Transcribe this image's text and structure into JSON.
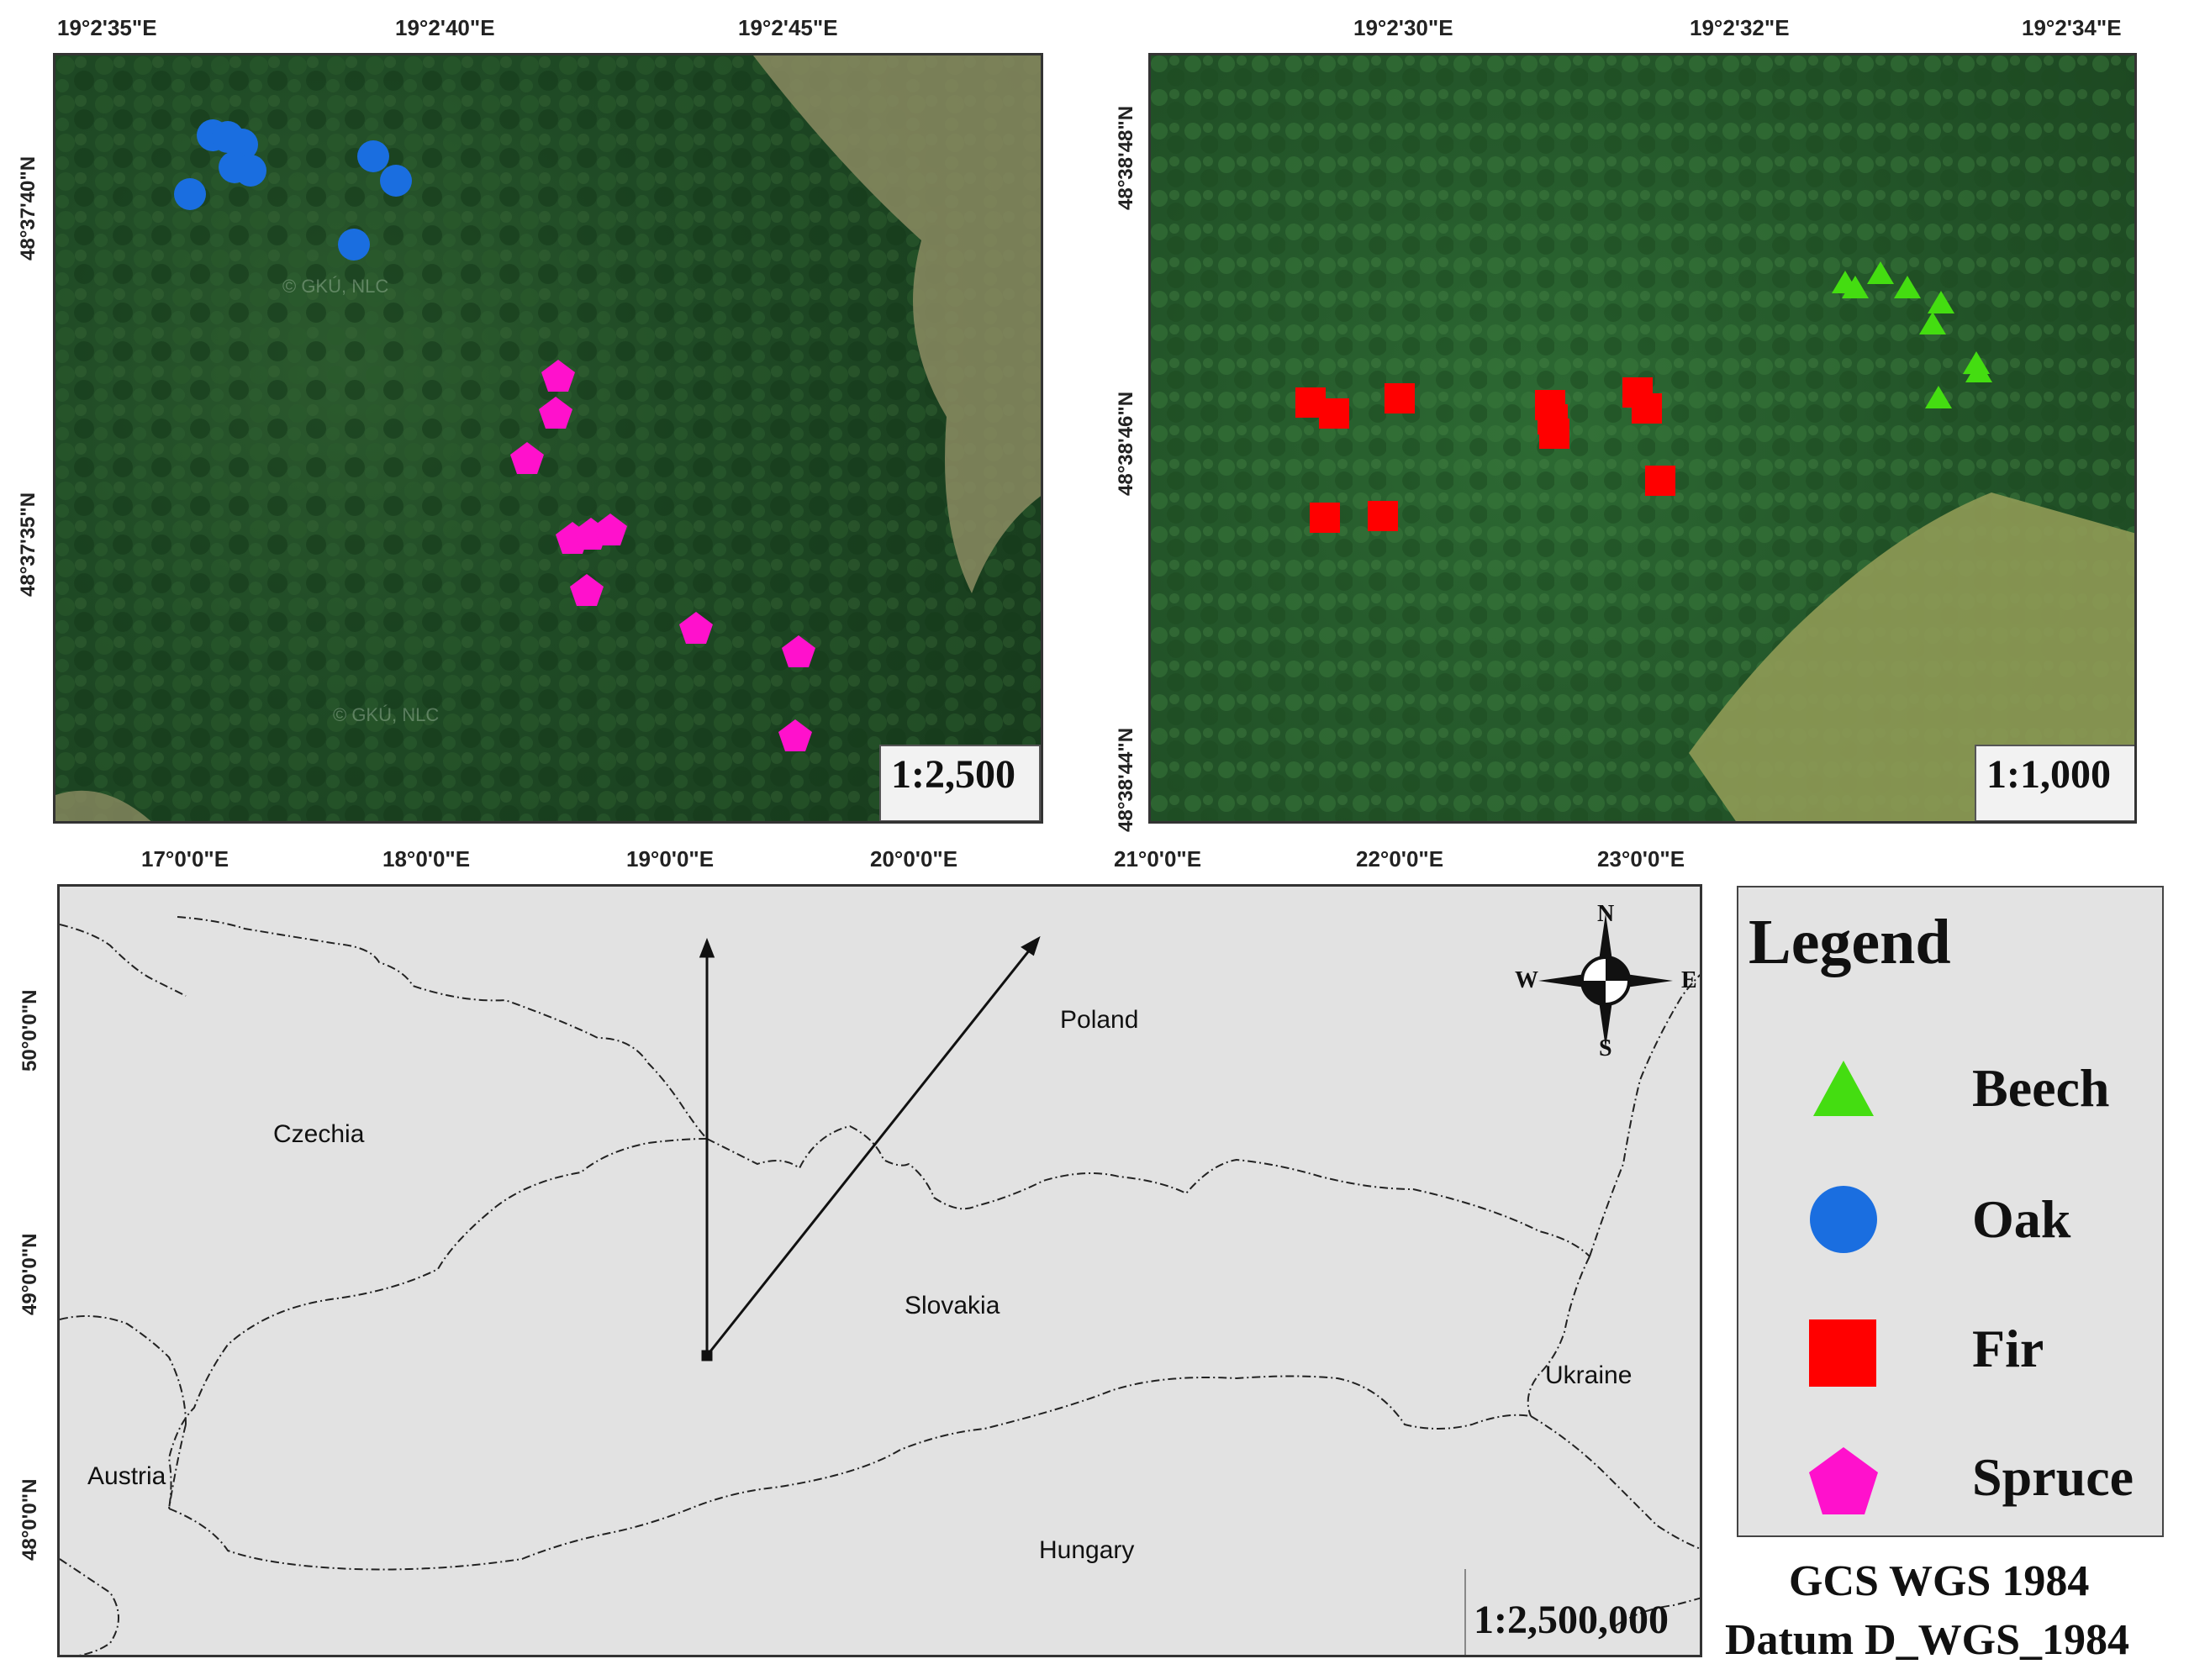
{
  "map1": {
    "x_ticks": [
      "19°2'35\"E",
      "19°2'40\"E",
      "19°2'45\"E"
    ],
    "y_ticks": [
      "48°37'40\"N",
      "48°37'35\"N"
    ],
    "scale": "1:2,500",
    "watermark": "© GKÚ, NLC",
    "oak_points": 9,
    "spruce_points": 11
  },
  "map2": {
    "x_ticks": [
      "19°2'30\"E",
      "19°2'32\"E",
      "19°2'34\"E"
    ],
    "y_ticks": [
      "48°38'48\"N",
      "48°38'46\"N",
      "48°38'44\"N"
    ],
    "scale": "1:1,000",
    "fir_points": 13,
    "beech_points": 9
  },
  "overview": {
    "x_ticks": [
      "17°0'0\"E",
      "18°0'0\"E",
      "19°0'0\"E",
      "20°0'0\"E",
      "21°0'0\"E",
      "22°0'0\"E",
      "23°0'0\"E"
    ],
    "y_ticks": [
      "50°0'0\"N",
      "49°0'0\"N",
      "48°0'0\"N"
    ],
    "countries": [
      "Poland",
      "Czechia",
      "Slovakia",
      "Ukraine",
      "Austria",
      "Hungary"
    ],
    "scale": "1:2,500,000",
    "compass": {
      "n": "N",
      "s": "S",
      "w": "W",
      "e": "E"
    }
  },
  "legend": {
    "title": "Legend",
    "items": [
      {
        "label": "Beech",
        "symbol": "triangle",
        "color": "#44dd11"
      },
      {
        "label": "Oak",
        "symbol": "circle",
        "color": "#1a6ee0"
      },
      {
        "label": "Fir",
        "symbol": "square",
        "color": "#ff0000"
      },
      {
        "label": "Spruce",
        "symbol": "pentagon",
        "color": "#ff11cc"
      }
    ]
  },
  "crs": {
    "line1": "GCS WGS 1984",
    "line2": "Datum D_WGS_1984"
  }
}
